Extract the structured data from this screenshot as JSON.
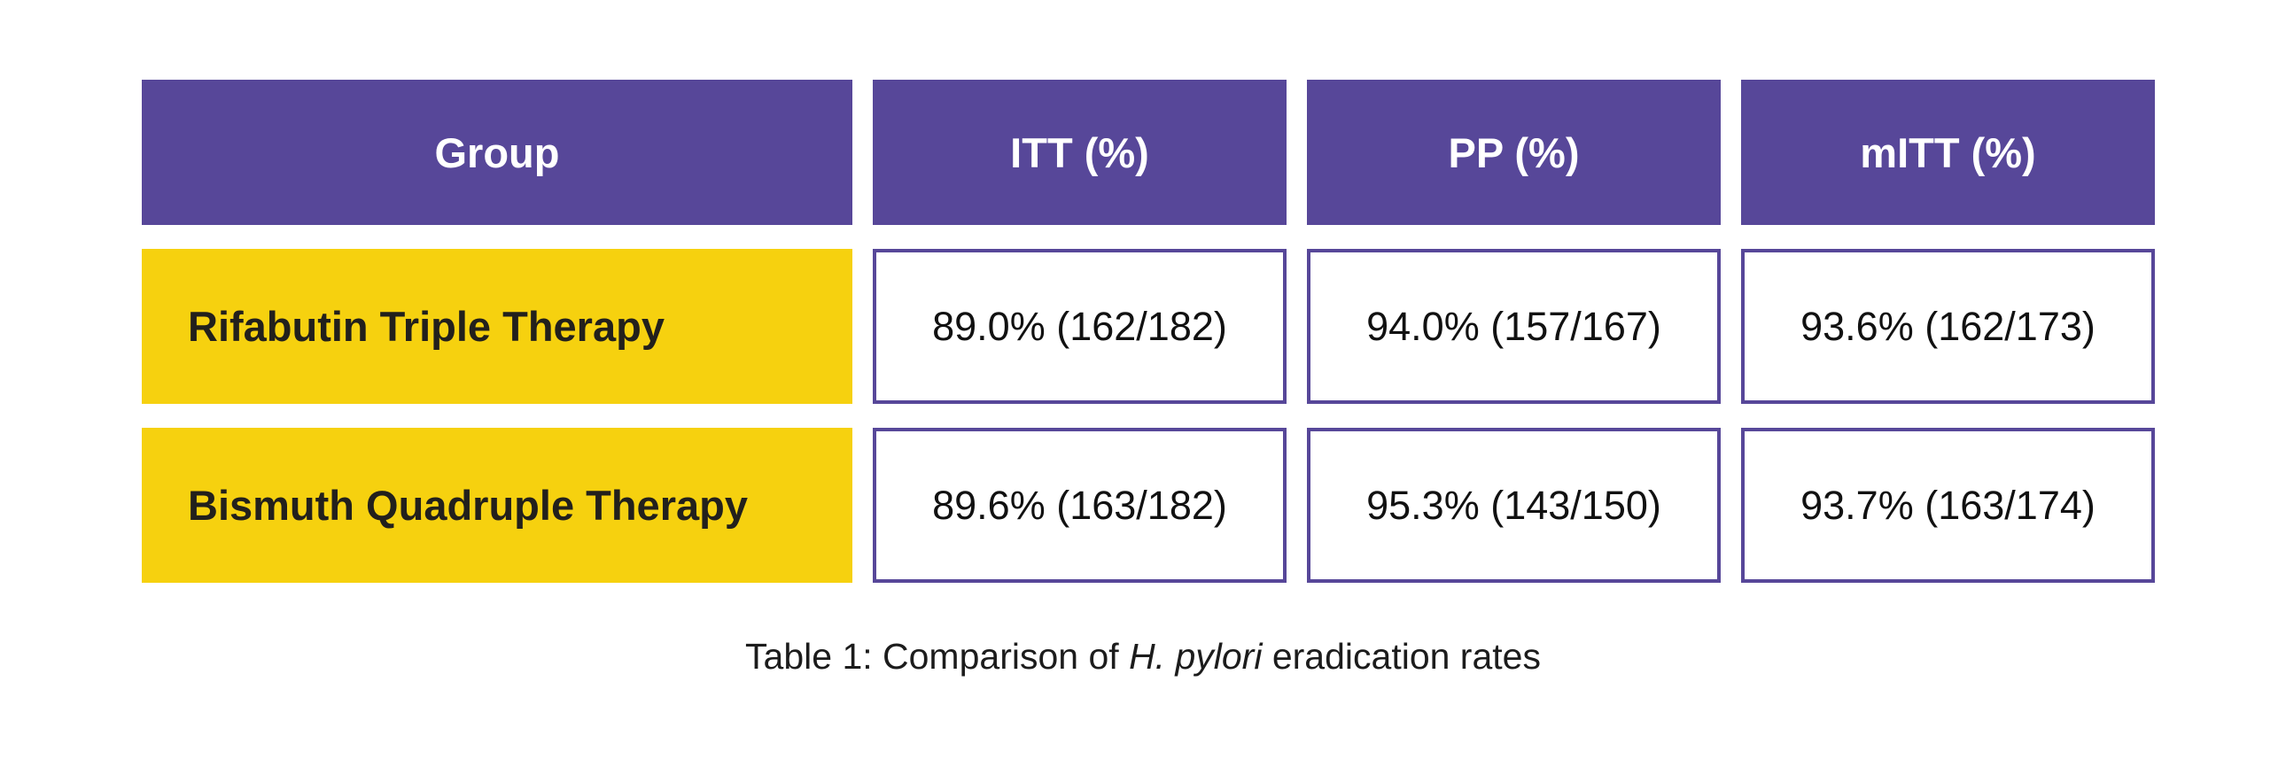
{
  "table": {
    "headers": [
      "Group",
      "ITT (%)",
      "PP (%)",
      "mITT (%)"
    ],
    "rows": [
      {
        "group": "Rifabutin Triple Therapy",
        "itt": "89.0% (162/182)",
        "pp": "94.0% (157/167)",
        "mitt": "93.6% (162/173)"
      },
      {
        "group": "Bismuth Quadruple Therapy",
        "itt": "89.6% (163/182)",
        "pp": "95.3% (143/150)",
        "mitt": "93.7% (163/174)"
      }
    ]
  },
  "caption": {
    "prefix": "Table 1: Comparison of",
    "italic": "H. pylori",
    "suffix": "eradication rates"
  },
  "colors": {
    "header_bg": "#574799",
    "label_bg": "#f6d10f",
    "border": "#574799"
  }
}
